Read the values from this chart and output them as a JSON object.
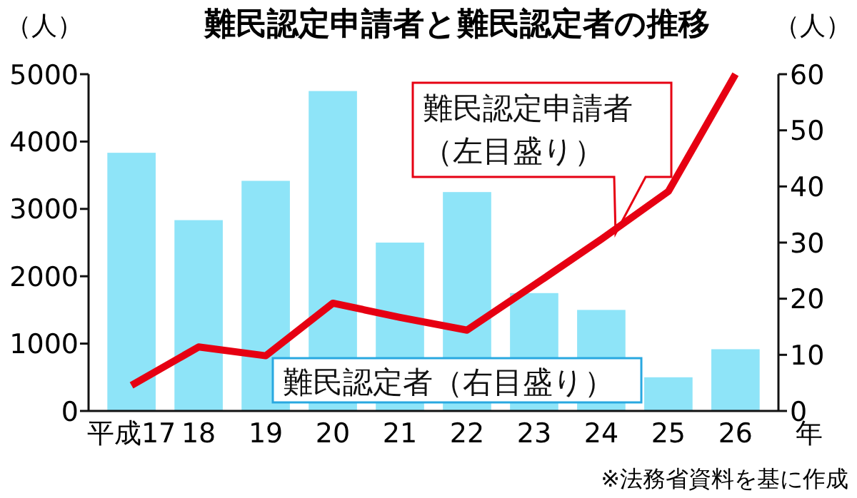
{
  "chart_data": {
    "type": "bar",
    "title": "難民認定申請者と難民認定者の推移",
    "ylabel": "（人）",
    "y2label": "（人）",
    "xlabel": "年",
    "categories": [
      "平成17",
      "18",
      "19",
      "20",
      "21",
      "22",
      "23",
      "24",
      "25",
      "26"
    ],
    "series": [
      {
        "name": "難民認定者（右目盛り）",
        "axis": "y2",
        "color": "#8ee4f8",
        "values": [
          46,
          34,
          41,
          57,
          30,
          39,
          21,
          18,
          6,
          11
        ]
      },
      {
        "name": "難民認定申請者（左目盛り）",
        "type": "line",
        "color": "#e60012",
        "values": [
          380,
          950,
          820,
          1600,
          1390,
          1200,
          1870,
          2550,
          3260,
          5000
        ]
      }
    ],
    "ylim": [
      0,
      5000
    ],
    "yticks": [
      0,
      1000,
      2000,
      3000,
      4000,
      5000
    ],
    "y2lim": [
      0,
      60
    ],
    "y2ticks": [
      0,
      10,
      20,
      30,
      40,
      50,
      60
    ],
    "marker": "none",
    "line_style": "solid",
    "annotations": [
      "※法務省資料を基に作成"
    ]
  }
}
